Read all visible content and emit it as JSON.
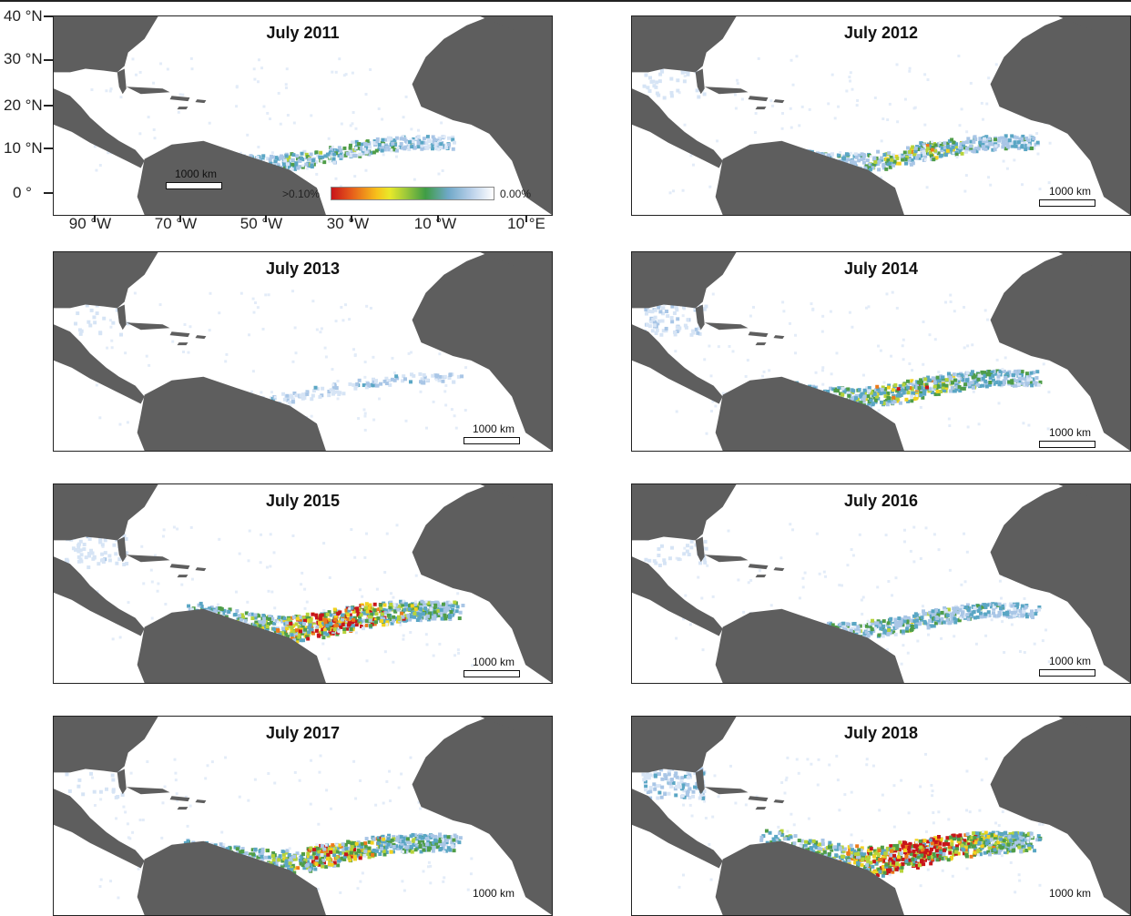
{
  "figure": {
    "panels": [
      {
        "title": "July 2011",
        "intensity": 0.35,
        "gulf": 0.0
      },
      {
        "title": "July 2012",
        "intensity": 0.45,
        "gulf": 0.2
      },
      {
        "title": "July 2013",
        "intensity": 0.0,
        "gulf": 0.1
      },
      {
        "title": "July 2014",
        "intensity": 0.55,
        "gulf": 0.4
      },
      {
        "title": "July 2015",
        "intensity": 0.85,
        "gulf": 0.3
      },
      {
        "title": "July 2016",
        "intensity": 0.4,
        "gulf": 0.15
      },
      {
        "title": "July 2017",
        "intensity": 0.7,
        "gulf": 0.1
      },
      {
        "title": "July 2018",
        "intensity": 1.0,
        "gulf": 0.6
      }
    ],
    "scale_label": "1000 km",
    "y_axis": [
      "40 °N",
      "30 °N",
      "20 °N",
      "10 °N",
      "0 °"
    ],
    "x_axis": [
      "90 °W",
      "70 °W",
      "50 °W",
      "30 °W",
      "10 °W",
      "10 °E"
    ],
    "colorbar": {
      "max_label": ">0.10%",
      "min_label": "0.00%"
    },
    "colors": {
      "land": "#5e5e5e",
      "ocean": "#ffffff",
      "high": "#c8151a",
      "low": "#b8cfe9"
    }
  }
}
